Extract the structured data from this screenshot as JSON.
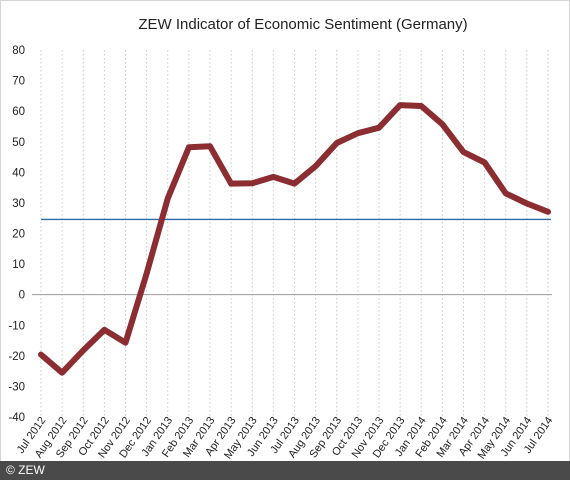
{
  "footer": {
    "copyright": "© ZEW"
  },
  "colors": {
    "series": "#8b2d31",
    "reference": "#2f6aa8",
    "grid": "#c8c8c8",
    "zero": "#9a9a9a"
  },
  "chart_data": {
    "type": "line",
    "title": "ZEW Indicator of Economic Sentiment (Germany)",
    "xlabel": "",
    "ylabel": "",
    "ylim": [
      -40,
      80
    ],
    "yticks": [
      -40,
      -30,
      -20,
      -10,
      0,
      10,
      20,
      30,
      40,
      50,
      60,
      70,
      80
    ],
    "grid": "vertical dotted",
    "categories": [
      "Jul 2012",
      "Aug 2012",
      "Sep 2012",
      "Oct 2012",
      "Nov 2012",
      "Dec 2012",
      "Jan 2013",
      "Feb 2013",
      "Mar 2013",
      "Apr 2013",
      "May 2013",
      "Jun 2013",
      "Jul 2013",
      "Aug 2013",
      "Sep 2013",
      "Oct 2013",
      "Nov 2013",
      "Dec 2013",
      "Jan 2014",
      "Feb 2014",
      "Mar 2014",
      "Apr 2014",
      "May 2014",
      "Jun 2014",
      "Jul 2014"
    ],
    "series": [
      {
        "values": [
          -19.6,
          -25.5,
          -18.2,
          -11.5,
          -15.7,
          6.9,
          31.5,
          48.2,
          48.5,
          36.3,
          36.4,
          38.5,
          36.3,
          42.0,
          49.6,
          52.8,
          54.6,
          62.0,
          61.7,
          55.7,
          46.6,
          43.2,
          33.1,
          29.8,
          27.1
        ]
      }
    ],
    "reference_line": {
      "value": 24.6
    }
  }
}
